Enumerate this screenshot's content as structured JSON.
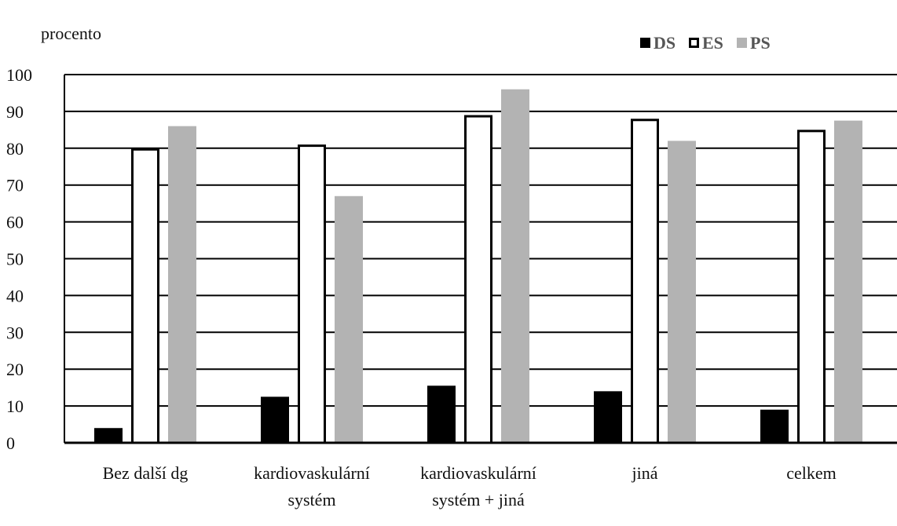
{
  "chart_data": {
    "type": "bar",
    "title": "",
    "xlabel": "",
    "ylabel": "procento",
    "ylim": [
      0,
      100
    ],
    "yticks": [
      0,
      10,
      20,
      30,
      40,
      50,
      60,
      70,
      80,
      90,
      100
    ],
    "grid": true,
    "legend_position": "top-right",
    "categories": [
      [
        "Bez další dg"
      ],
      [
        "kardiovaskulární",
        "systém"
      ],
      [
        "kardiovaskulární",
        "systém + jiná"
      ],
      [
        "jiná"
      ],
      [
        "celkem"
      ]
    ],
    "series": [
      {
        "name": "DS",
        "values": [
          4,
          12.5,
          15.5,
          14,
          9
        ],
        "color": "#000000"
      },
      {
        "name": "ES",
        "values": [
          80,
          81,
          89,
          88,
          85
        ],
        "color": "#ffffff",
        "stroke": "#000000"
      },
      {
        "name": "PS",
        "values": [
          86,
          67,
          96,
          82,
          87.5
        ],
        "color": "#b3b3b3"
      }
    ]
  }
}
